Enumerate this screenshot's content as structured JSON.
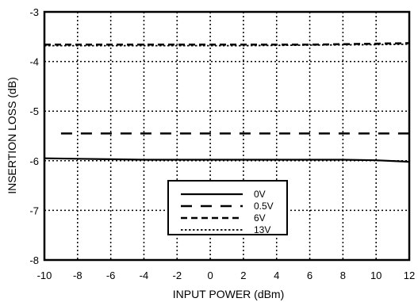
{
  "chart_data": {
    "type": "line",
    "title": "",
    "xlabel": "INPUT POWER (dBm)",
    "ylabel": "INSERTION LOSS (dB)",
    "xlim": [
      -10,
      12
    ],
    "ylim": [
      -8,
      -3
    ],
    "x_ticks": [
      -10,
      -8,
      -6,
      -4,
      -2,
      0,
      2,
      4,
      6,
      8,
      10,
      12
    ],
    "y_ticks": [
      -8,
      -7,
      -6,
      -5,
      -4,
      -3
    ],
    "grid": true,
    "legend_position": "lower-center",
    "series": [
      {
        "name": "0V",
        "style": "solid",
        "x": [
          -10,
          -8,
          -6,
          -4,
          -2,
          0,
          2,
          4,
          6,
          8,
          10,
          12
        ],
        "y": [
          -5.95,
          -5.96,
          -5.97,
          -5.98,
          -5.98,
          -5.98,
          -5.98,
          -5.98,
          -5.98,
          -5.98,
          -5.99,
          -6.02
        ]
      },
      {
        "name": "0.5V",
        "style": "long-dash",
        "x": [
          -9,
          -6,
          -3,
          0,
          3,
          6,
          9,
          12
        ],
        "y": [
          -5.45,
          -5.45,
          -5.45,
          -5.45,
          -5.45,
          -5.45,
          -5.45,
          -5.45
        ]
      },
      {
        "name": "6V",
        "style": "dash",
        "x": [
          -10,
          -6,
          -2,
          2,
          6,
          10,
          12
        ],
        "y": [
          -3.66,
          -3.66,
          -3.66,
          -3.66,
          -3.66,
          -3.64,
          -3.63
        ]
      },
      {
        "name": "13V",
        "style": "dot",
        "x": [
          -10,
          -6,
          -2,
          2,
          6,
          10,
          12
        ],
        "y": [
          -3.68,
          -3.68,
          -3.68,
          -3.68,
          -3.67,
          -3.66,
          -3.65
        ]
      }
    ]
  }
}
